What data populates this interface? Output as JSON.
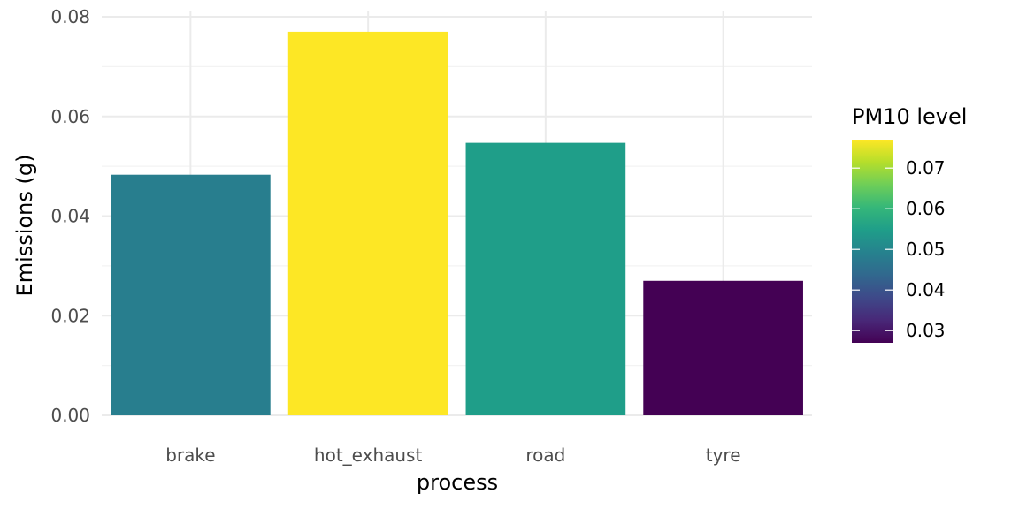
{
  "chart_data": {
    "type": "bar",
    "categories": [
      "brake",
      "hot_exhaust",
      "road",
      "tyre"
    ],
    "values": [
      0.0483,
      0.077,
      0.0547,
      0.027
    ],
    "xlabel": "process",
    "ylabel": "Emissions (g)",
    "ylim": [
      0,
      0.08
    ],
    "yticks": [
      0.0,
      0.02,
      0.04,
      0.06,
      0.08
    ],
    "ytick_labels": [
      "0.00",
      "0.02",
      "0.04",
      "0.06",
      "0.08"
    ],
    "grid": true,
    "fill_by_value": true,
    "legend": {
      "title": "PM10 level",
      "position": "right",
      "type": "colorbar",
      "range": [
        0.027,
        0.077
      ],
      "ticks": [
        0.03,
        0.04,
        0.05,
        0.06,
        0.07
      ],
      "tick_labels": [
        "0.03",
        "0.04",
        "0.05",
        "0.06",
        "0.07"
      ]
    },
    "palette": [
      "#440154",
      "#482878",
      "#3e4989",
      "#31688e",
      "#26828e",
      "#1f9e89",
      "#35b779",
      "#6ece58",
      "#b5de2b",
      "#fde725"
    ]
  }
}
